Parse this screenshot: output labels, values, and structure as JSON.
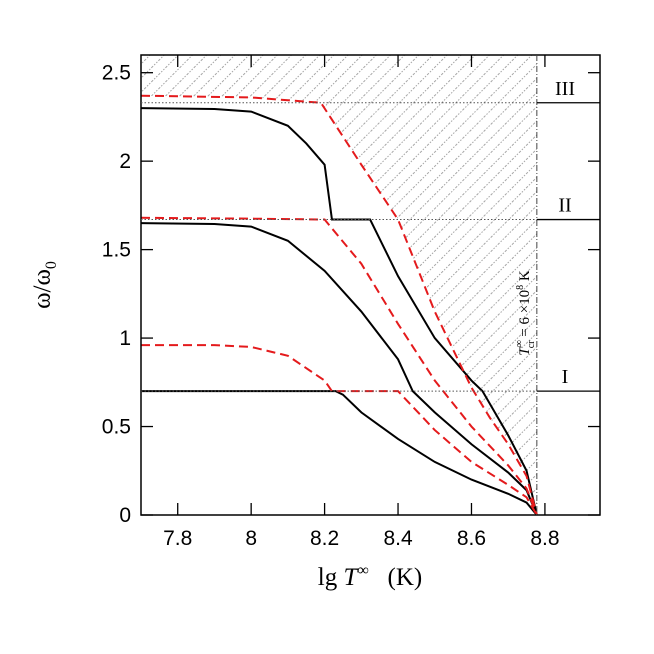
{
  "chart_data": {
    "type": "line",
    "x_label": [
      "lg ",
      "T",
      "∞",
      "   (K)"
    ],
    "y_label": [
      "ω/ω",
      "0"
    ],
    "xlim": [
      7.7,
      8.95
    ],
    "ylim": [
      0,
      2.6
    ],
    "xticks": [
      7.8,
      8,
      8.2,
      8.4,
      8.6,
      8.8
    ],
    "yticks": [
      0,
      0.5,
      1,
      1.5,
      2,
      2.5
    ],
    "t_cr": 8.778,
    "annotation": [
      "T",
      "∞",
      "cr",
      " = 6 ×10",
      "8",
      " K"
    ],
    "levels": [
      {
        "value": 0.7,
        "label": "I"
      },
      {
        "value": 1.67,
        "label": "II"
      },
      {
        "value": 2.33,
        "label": "III"
      }
    ],
    "series": [
      {
        "color": "#000000",
        "dash": false,
        "x": [
          7.7,
          8.0,
          8.1,
          8.2,
          8.23,
          8.25,
          8.3,
          8.4,
          8.5,
          8.6,
          8.7,
          8.75,
          8.778
        ],
        "values": [
          0.7,
          0.7,
          0.7,
          0.7,
          0.7,
          0.68,
          0.58,
          0.43,
          0.3,
          0.2,
          0.12,
          0.07,
          0
        ]
      },
      {
        "color": "#000000",
        "dash": false,
        "x": [
          7.7,
          7.9,
          8.0,
          8.1,
          8.2,
          8.3,
          8.4,
          8.44,
          8.5,
          8.6,
          8.7,
          8.75,
          8.778
        ],
        "values": [
          1.65,
          1.645,
          1.63,
          1.55,
          1.38,
          1.15,
          0.88,
          0.7,
          0.58,
          0.4,
          0.24,
          0.14,
          0
        ]
      },
      {
        "color": "#000000",
        "dash": false,
        "x": [
          7.7,
          7.9,
          8.0,
          8.1,
          8.15,
          8.2,
          8.22,
          8.324,
          8.4,
          8.5,
          8.6,
          8.63,
          8.7,
          8.75,
          8.778
        ],
        "values": [
          2.3,
          2.295,
          2.28,
          2.2,
          2.1,
          1.98,
          1.67,
          1.67,
          1.35,
          1.0,
          0.76,
          0.7,
          0.45,
          0.25,
          0
        ]
      },
      {
        "color": "#e41a1c",
        "dash": true,
        "x": [
          7.7,
          7.9,
          8.0,
          8.1,
          8.2,
          8.22,
          8.3,
          8.4,
          8.5,
          8.6,
          8.7,
          8.75,
          8.778
        ],
        "values": [
          0.96,
          0.96,
          0.95,
          0.9,
          0.76,
          0.7,
          0.7,
          0.7,
          0.48,
          0.3,
          0.17,
          0.1,
          0
        ]
      },
      {
        "color": "#e41a1c",
        "dash": true,
        "x": [
          7.7,
          8.0,
          8.2,
          8.3,
          8.4,
          8.5,
          8.6,
          8.7,
          8.75,
          8.778
        ],
        "values": [
          1.68,
          1.675,
          1.67,
          1.42,
          1.08,
          0.76,
          0.5,
          0.28,
          0.15,
          0
        ]
      },
      {
        "color": "#e41a1c",
        "dash": true,
        "x": [
          7.7,
          8.0,
          8.19,
          8.3,
          8.4,
          8.5,
          8.6,
          8.65,
          8.7,
          8.75,
          8.778
        ],
        "values": [
          2.37,
          2.36,
          2.33,
          1.98,
          1.67,
          1.15,
          0.72,
          0.55,
          0.4,
          0.22,
          0
        ]
      }
    ]
  }
}
